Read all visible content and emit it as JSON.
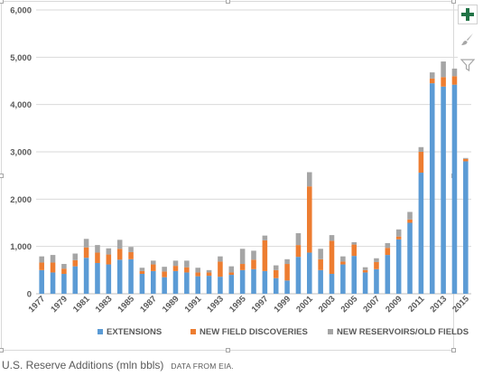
{
  "caption": {
    "title": "U.S. Reserve Additions (mln bbls)",
    "source": "DATA FROM EIA."
  },
  "side_buttons": [
    {
      "name": "chart-elements-button",
      "icon": "plus-icon",
      "color": "#217346"
    },
    {
      "name": "chart-styles-button",
      "icon": "paintbrush-icon",
      "color": "#a6a6a6"
    },
    {
      "name": "chart-filters-button",
      "icon": "filter-icon",
      "color": "#a6a6a6"
    }
  ],
  "chart_data": {
    "type": "bar",
    "stacked": true,
    "title": "",
    "xlabel": "",
    "ylabel": "",
    "ylim": [
      0,
      6000
    ],
    "yticks": [
      "0",
      "1,000",
      "2,000",
      "3,000",
      "4,000",
      "5,000",
      "6,000"
    ],
    "grid": true,
    "legend": "bottom",
    "categories": [
      "1977",
      "1978",
      "1979",
      "1980",
      "1981",
      "1982",
      "1983",
      "1984",
      "1985",
      "1986",
      "1987",
      "1988",
      "1989",
      "1990",
      "1991",
      "1992",
      "1993",
      "1994",
      "1995",
      "1996",
      "1997",
      "1998",
      "1999",
      "2000",
      "2001",
      "2002",
      "2003",
      "2004",
      "2005",
      "2006",
      "2007",
      "2008",
      "2009",
      "2010",
      "2011",
      "2012",
      "2013",
      "2014",
      "2015"
    ],
    "xtick_labels": [
      "1977",
      "1979",
      "1981",
      "1983",
      "1985",
      "1987",
      "1989",
      "1991",
      "1993",
      "1995",
      "1997",
      "1999",
      "2001",
      "2003",
      "2005",
      "2007",
      "2009",
      "2011",
      "2013",
      "2015"
    ],
    "series": [
      {
        "name": "EXTENSIONS",
        "color": "#5b9bd5",
        "values": [
          500,
          450,
          420,
          580,
          760,
          650,
          620,
          720,
          730,
          420,
          480,
          350,
          480,
          450,
          370,
          380,
          360,
          400,
          500,
          520,
          480,
          330,
          280,
          780,
          870,
          500,
          420,
          620,
          800,
          450,
          520,
          820,
          1150,
          1500,
          2560,
          4450,
          4380,
          4420,
          2800
        ]
      },
      {
        "name": "NEW FIELD DISCOVERIES",
        "color": "#ed7d31",
        "values": [
          160,
          210,
          110,
          130,
          220,
          220,
          210,
          230,
          150,
          60,
          140,
          120,
          110,
          110,
          80,
          70,
          320,
          50,
          130,
          200,
          650,
          170,
          350,
          250,
          1400,
          230,
          700,
          60,
          240,
          50,
          150,
          150,
          60,
          70,
          440,
          100,
          200,
          180,
          50
        ]
      },
      {
        "name": "NEW RESERVOIRS/OLD FIELDS",
        "color": "#a5a5a5",
        "values": [
          130,
          160,
          100,
          140,
          180,
          160,
          130,
          190,
          110,
          70,
          80,
          100,
          110,
          140,
          100,
          50,
          110,
          130,
          320,
          190,
          100,
          100,
          100,
          250,
          300,
          220,
          120,
          110,
          50,
          60,
          80,
          100,
          150,
          160,
          100,
          130,
          330,
          160,
          20
        ]
      }
    ]
  }
}
